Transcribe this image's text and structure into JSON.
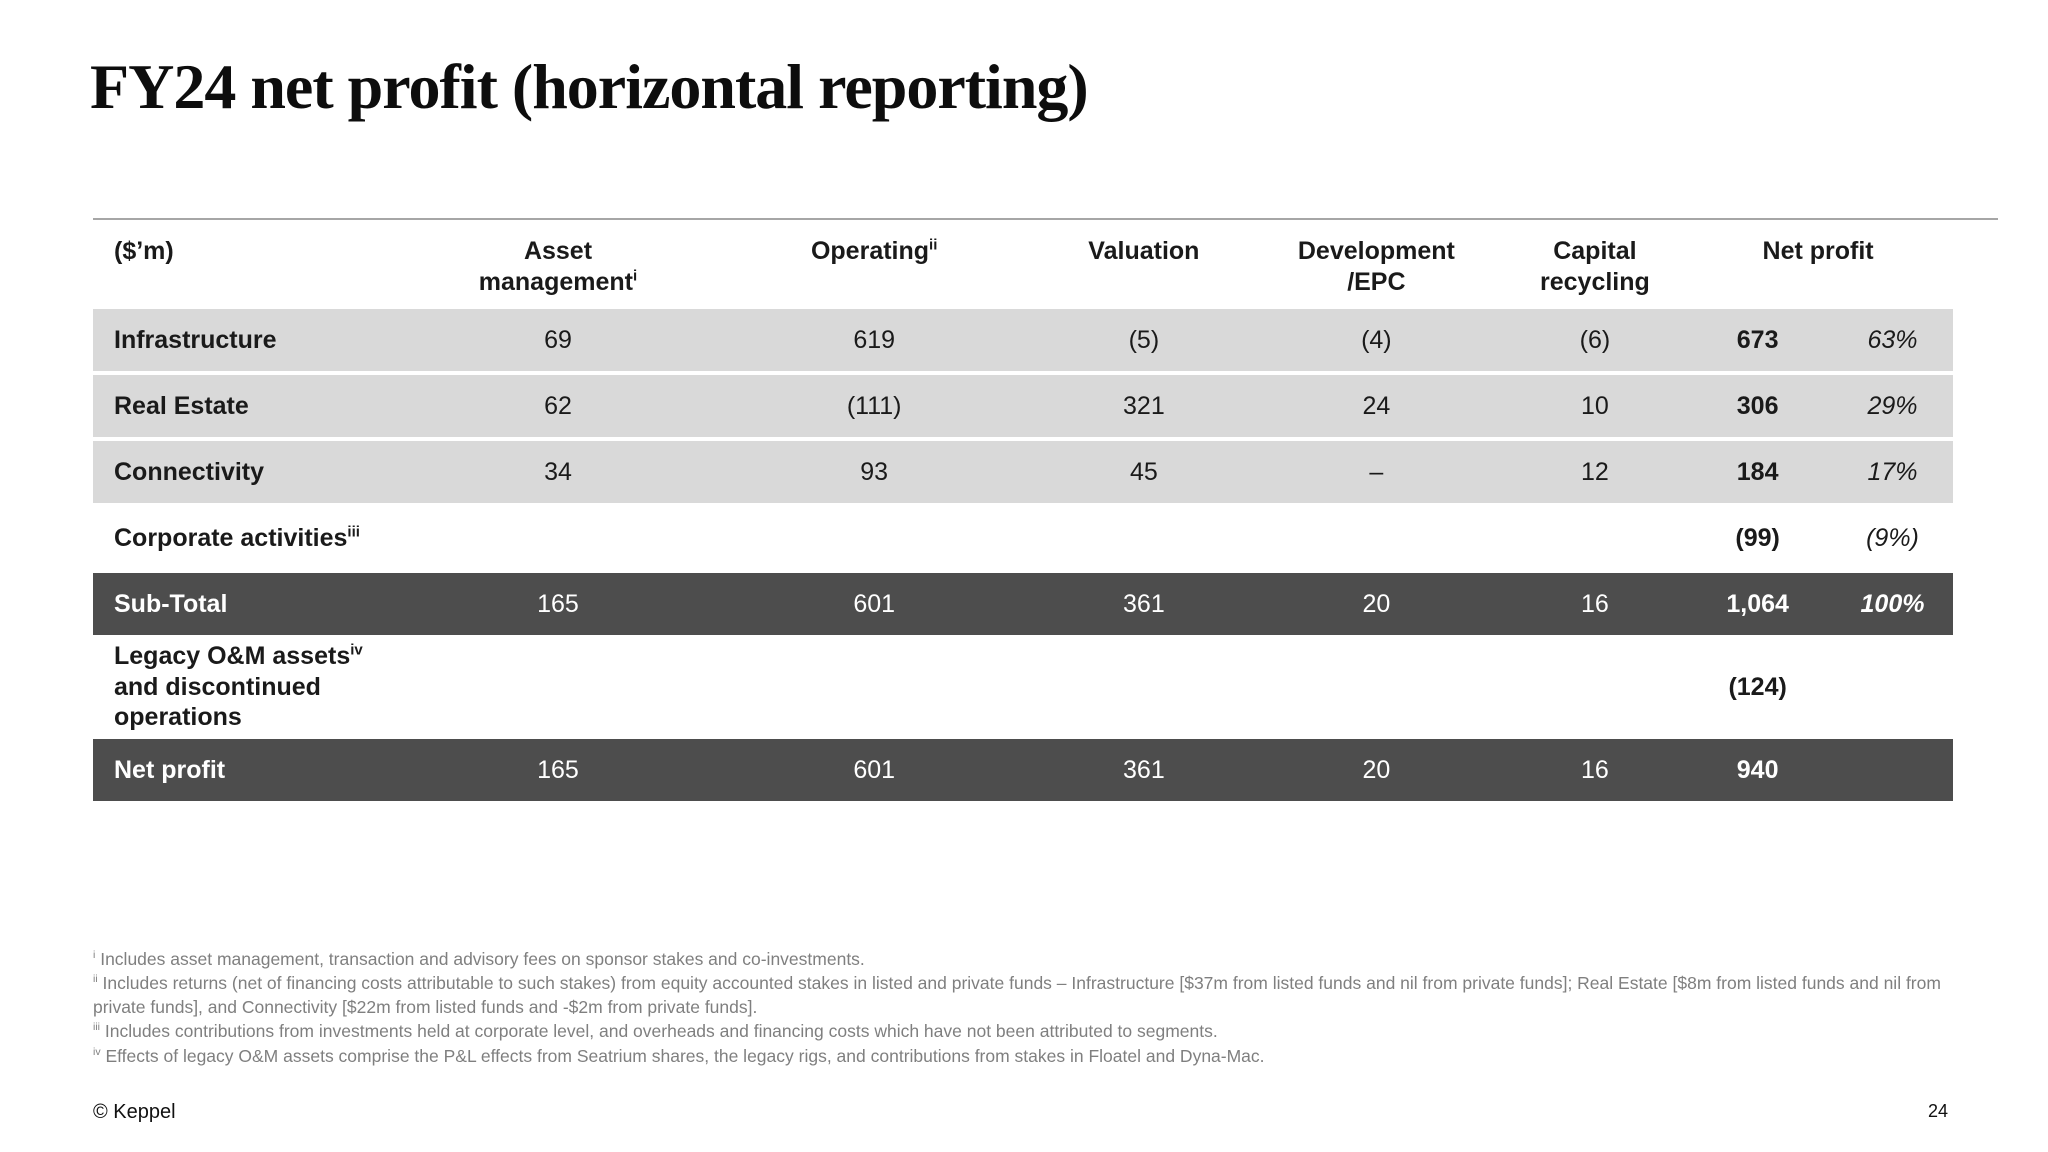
{
  "slide": {
    "title": "FY24 net profit (horizontal reporting)",
    "footer": {
      "copyright": "© Keppel",
      "page": "24"
    }
  },
  "table": {
    "unit_label": "($’m)",
    "columns": [
      {
        "lines": [
          "Asset",
          "management"
        ],
        "sup": "i"
      },
      {
        "lines": [
          "Operating"
        ],
        "sup": "ii"
      },
      {
        "lines": [
          "Valuation"
        ],
        "sup": ""
      },
      {
        "lines": [
          "Development",
          "/EPC"
        ],
        "sup": ""
      },
      {
        "lines": [
          "Capital",
          "recycling"
        ],
        "sup": ""
      },
      {
        "lines": [
          "Net profit"
        ],
        "sup": ""
      }
    ],
    "rows": [
      {
        "label": "Infrastructure",
        "sup": "",
        "label2": "",
        "values": [
          "69",
          "619",
          "(5)",
          "(4)",
          "(6)"
        ],
        "net": "673",
        "pct": "63%",
        "style": "gray"
      },
      {
        "label": "Real Estate",
        "sup": "",
        "label2": "",
        "values": [
          "62",
          "(111)",
          "321",
          "24",
          "10"
        ],
        "net": "306",
        "pct": "29%",
        "style": "gray"
      },
      {
        "label": "Connectivity",
        "sup": "",
        "label2": "",
        "values": [
          "34",
          "93",
          "45",
          "–",
          "12"
        ],
        "net": "184",
        "pct": "17%",
        "style": "gray"
      },
      {
        "label": "Corporate activities",
        "sup": "iii",
        "label2": "",
        "values": [
          "",
          "",
          "",
          "",
          ""
        ],
        "net": "(99)",
        "pct": "(9%)",
        "style": "white"
      },
      {
        "label": "Sub-Total",
        "sup": "",
        "label2": "",
        "values": [
          "165",
          "601",
          "361",
          "20",
          "16"
        ],
        "net": "1,064",
        "pct": "100%",
        "style": "dark"
      },
      {
        "label": "Legacy O&M assets",
        "sup": "iv",
        "label2": "and discontinued operations",
        "values": [
          "",
          "",
          "",
          "",
          ""
        ],
        "net": "(124)",
        "pct": "",
        "style": "white tall"
      },
      {
        "label": "Net profit",
        "sup": "",
        "label2": "",
        "values": [
          "165",
          "601",
          "361",
          "20",
          "16"
        ],
        "net": "940",
        "pct": "",
        "style": "dark"
      }
    ]
  },
  "footnotes": [
    {
      "sup": "i",
      "text": "Includes asset management, transaction and advisory fees on sponsor stakes and co-investments."
    },
    {
      "sup": "ii",
      "text": "Includes returns (net of financing costs attributable to such stakes) from equity accounted stakes in listed and private funds – Infrastructure [$37m from listed funds and nil from private funds]; Real Estate [$8m from listed funds and nil from private funds], and Connectivity [$22m from listed funds and -$2m from private funds]."
    },
    {
      "sup": "iii",
      "text": "Includes contributions from investments held at corporate level, and overheads and financing costs which have not been attributed to segments."
    },
    {
      "sup": "iv",
      "text": "Effects of legacy O&M assets comprise the P&L effects from Seatrium shares, the legacy rigs, and contributions from stakes in Floatel and Dyna-Mac."
    }
  ],
  "colors": {
    "row_gray": "#d9d9d9",
    "row_dark": "#4d4d4d",
    "footnote_gray": "#7f7f7f",
    "rule_gray": "#a6a6a6"
  }
}
